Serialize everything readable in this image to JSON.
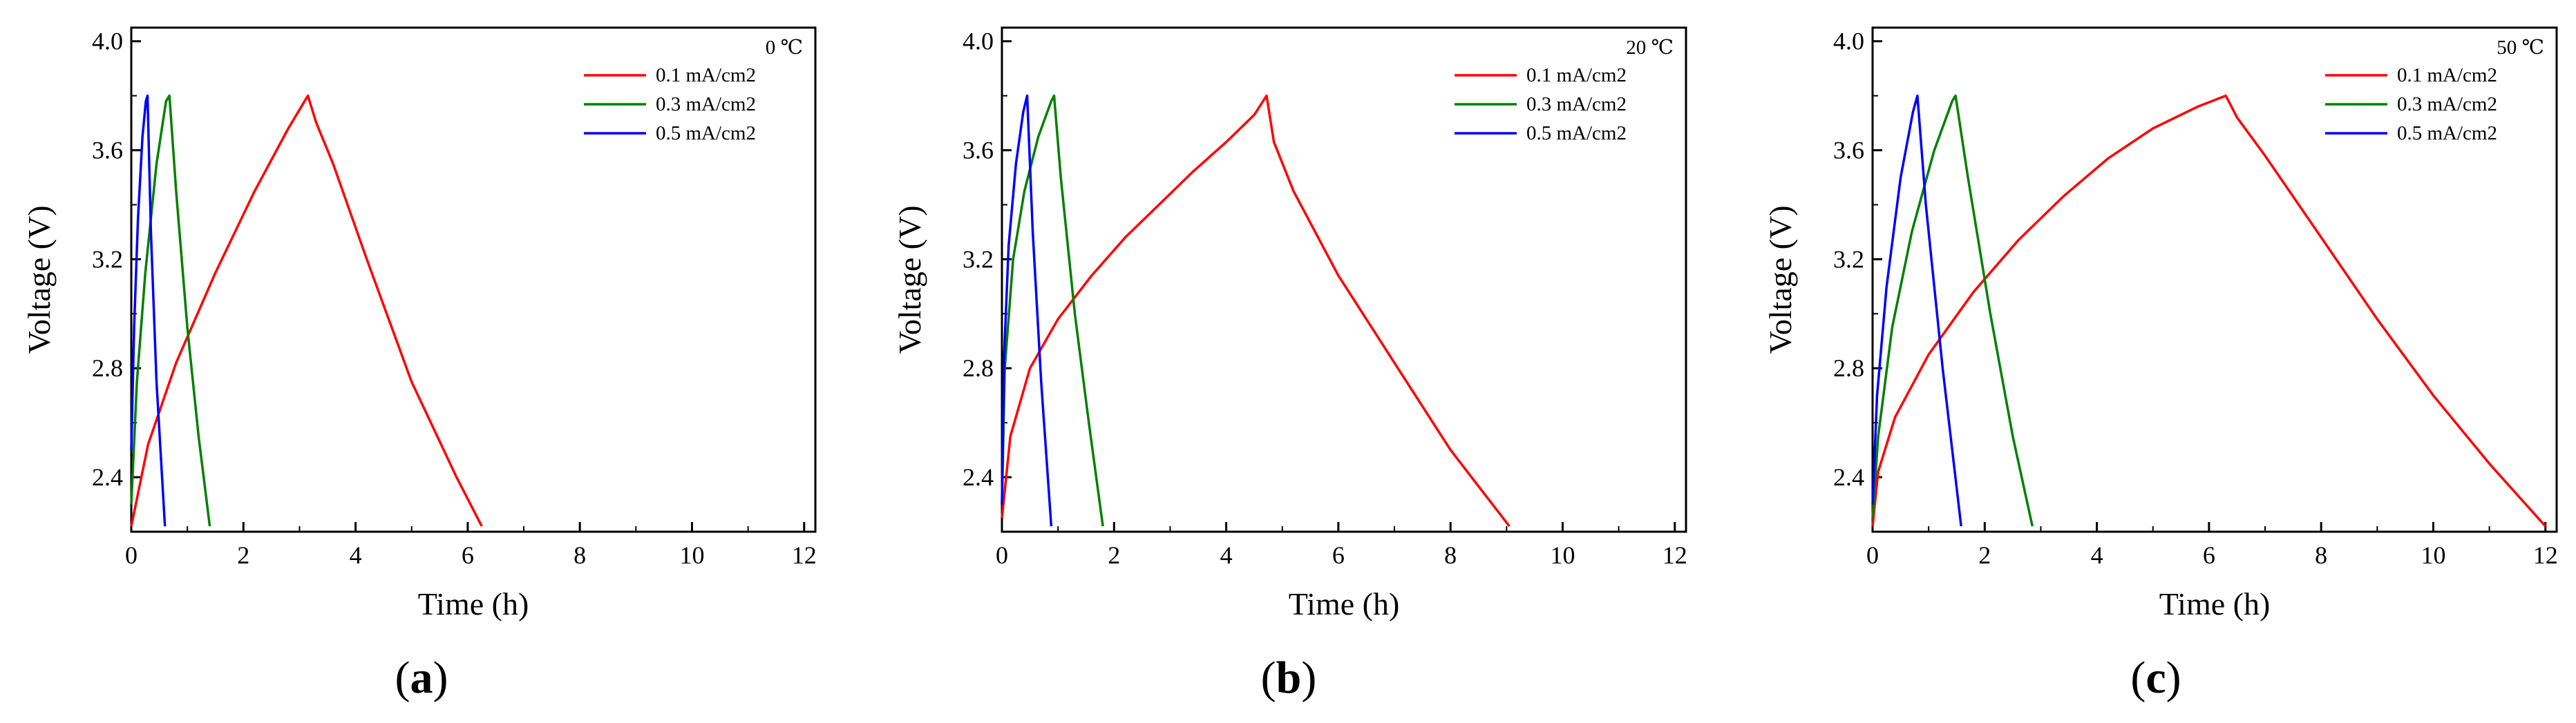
{
  "chart_data": [
    {
      "type": "line",
      "panel_label": "(a)",
      "panel_label_parts": [
        "(",
        "a",
        ")"
      ],
      "legend_title": "0 ℃",
      "xlabel": "Time (h)",
      "ylabel": "Voltage (V)",
      "xlim": [
        0,
        12.2
      ],
      "ylim": [
        2.2,
        4.05
      ],
      "xticks": [
        0,
        2,
        4,
        6,
        8,
        10,
        12
      ],
      "yticks": [
        2.4,
        2.8,
        3.2,
        3.6,
        4.0
      ],
      "ytick_labels": [
        "2.4",
        "2.8",
        "3.2",
        "3.6",
        "4.0"
      ],
      "legend_position": "top-right",
      "series": [
        {
          "name": "0.1 mA/cm2",
          "color": "#ff0000",
          "x": [
            0,
            0.3,
            0.8,
            1.5,
            2.2,
            2.8,
            3.15,
            3.3,
            3.6,
            4.2,
            5.0,
            5.8,
            6.25
          ],
          "y": [
            2.22,
            2.52,
            2.82,
            3.15,
            3.45,
            3.68,
            3.8,
            3.7,
            3.55,
            3.2,
            2.75,
            2.4,
            2.22
          ]
        },
        {
          "name": "0.3 mA/cm2",
          "color": "#008000",
          "x": [
            0,
            0.1,
            0.25,
            0.45,
            0.62,
            0.68,
            0.8,
            1.0,
            1.2,
            1.4
          ],
          "y": [
            2.3,
            2.75,
            3.15,
            3.55,
            3.78,
            3.8,
            3.45,
            2.95,
            2.55,
            2.22
          ]
        },
        {
          "name": "0.5 mA/cm2",
          "color": "#0000ff",
          "x": [
            0,
            0.05,
            0.12,
            0.2,
            0.26,
            0.29,
            0.35,
            0.45,
            0.6
          ],
          "y": [
            2.5,
            2.95,
            3.35,
            3.65,
            3.78,
            3.8,
            3.3,
            2.75,
            2.22
          ]
        }
      ]
    },
    {
      "type": "line",
      "panel_label": "(b)",
      "panel_label_parts": [
        "(",
        "b",
        ")"
      ],
      "legend_title": "20 ℃",
      "xlabel": "Time (h)",
      "ylabel": "Voltage (V)",
      "xlim": [
        0,
        12.2
      ],
      "ylim": [
        2.2,
        4.05
      ],
      "xticks": [
        0,
        2,
        4,
        6,
        8,
        10,
        12
      ],
      "yticks": [
        2.4,
        2.8,
        3.2,
        3.6,
        4.0
      ],
      "ytick_labels": [
        "2.4",
        "2.8",
        "3.2",
        "3.6",
        "4.0"
      ],
      "legend_position": "top-right",
      "series": [
        {
          "name": "0.1 mA/cm2",
          "color": "#ff0000",
          "x": [
            0,
            0.15,
            0.5,
            1.0,
            1.6,
            2.2,
            2.8,
            3.4,
            4.0,
            4.5,
            4.72,
            4.85,
            5.2,
            6.0,
            7.0,
            8.0,
            9.05
          ],
          "y": [
            2.25,
            2.55,
            2.8,
            2.98,
            3.14,
            3.28,
            3.4,
            3.52,
            3.63,
            3.73,
            3.8,
            3.63,
            3.45,
            3.14,
            2.82,
            2.5,
            2.22
          ]
        },
        {
          "name": "0.3 mA/cm2",
          "color": "#008000",
          "x": [
            0,
            0.05,
            0.2,
            0.4,
            0.65,
            0.88,
            0.93,
            1.05,
            1.3,
            1.55,
            1.8
          ],
          "y": [
            2.3,
            2.8,
            3.2,
            3.45,
            3.65,
            3.78,
            3.8,
            3.5,
            3.0,
            2.6,
            2.22
          ]
        },
        {
          "name": "0.5 mA/cm2",
          "color": "#0000ff",
          "x": [
            0,
            0.04,
            0.12,
            0.25,
            0.38,
            0.45,
            0.55,
            0.7,
            0.88
          ],
          "y": [
            2.3,
            2.85,
            3.25,
            3.55,
            3.74,
            3.8,
            3.3,
            2.75,
            2.22
          ]
        }
      ]
    },
    {
      "type": "line",
      "panel_label": "(c)",
      "panel_label_parts": [
        "(",
        "c",
        ")"
      ],
      "legend_title": "50 ℃",
      "xlabel": "Time (h)",
      "ylabel": "Voltage (V)",
      "xlim": [
        0,
        12.2
      ],
      "ylim": [
        2.2,
        4.05
      ],
      "xticks": [
        0,
        2,
        4,
        6,
        8,
        10,
        12
      ],
      "yticks": [
        2.4,
        2.8,
        3.2,
        3.6,
        4.0
      ],
      "ytick_labels": [
        "2.4",
        "2.8",
        "3.2",
        "3.6",
        "4.0"
      ],
      "legend_position": "top-right",
      "series": [
        {
          "name": "0.1 mA/cm2",
          "color": "#ff0000",
          "x": [
            0,
            0.1,
            0.4,
            1.0,
            1.8,
            2.6,
            3.4,
            4.2,
            5.0,
            5.8,
            6.3,
            6.5,
            7.0,
            8.0,
            9.0,
            10.0,
            11.0,
            12.0
          ],
          "y": [
            2.22,
            2.42,
            2.62,
            2.85,
            3.08,
            3.27,
            3.43,
            3.57,
            3.68,
            3.76,
            3.8,
            3.72,
            3.58,
            3.28,
            2.98,
            2.7,
            2.45,
            2.22
          ]
        },
        {
          "name": "0.3 mA/cm2",
          "color": "#008000",
          "x": [
            0,
            0.1,
            0.35,
            0.7,
            1.1,
            1.42,
            1.48,
            1.7,
            2.1,
            2.5,
            2.85
          ],
          "y": [
            2.25,
            2.55,
            2.95,
            3.3,
            3.6,
            3.78,
            3.8,
            3.5,
            3.0,
            2.55,
            2.22
          ]
        },
        {
          "name": "0.5 mA/cm2",
          "color": "#0000ff",
          "x": [
            0,
            0.08,
            0.25,
            0.5,
            0.72,
            0.8,
            0.95,
            1.25,
            1.58
          ],
          "y": [
            2.3,
            2.7,
            3.1,
            3.5,
            3.74,
            3.8,
            3.4,
            2.8,
            2.22
          ]
        }
      ]
    }
  ]
}
